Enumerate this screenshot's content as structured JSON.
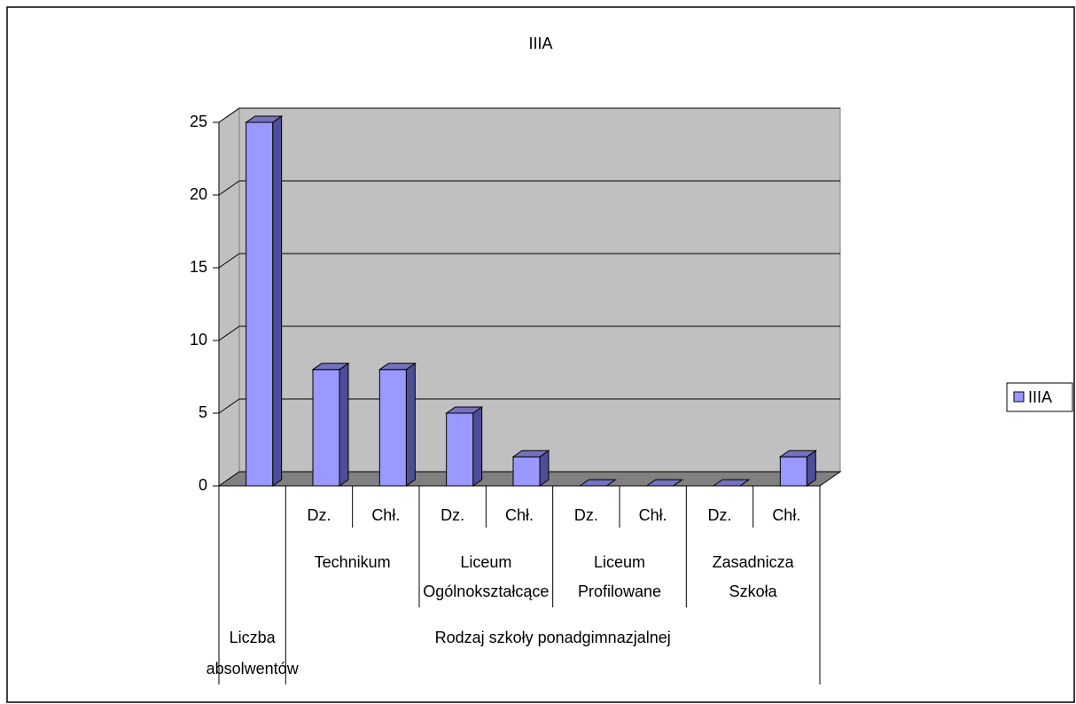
{
  "chart_data": {
    "type": "bar3d",
    "title": "IIIA",
    "series": [
      {
        "name": "IIIA",
        "color": "#9999ff",
        "values": [
          25,
          8,
          8,
          5,
          2,
          0,
          0,
          0,
          2
        ]
      }
    ],
    "groups": [
      {
        "name": "Liczba absolwentów",
        "subgroups": [
          {
            "name": null,
            "categories": [
              null
            ]
          }
        ]
      },
      {
        "name": "Rodzaj szkoły ponadgimnazjalnej",
        "subgroups": [
          {
            "name": "Technikum",
            "categories": [
              "Dz.",
              "Chł."
            ]
          },
          {
            "name": "Liceum Ogólnokształcące",
            "categories": [
              "Dz.",
              "Chł."
            ]
          },
          {
            "name": "Liceum Profilowane",
            "categories": [
              "Dz.",
              "Chł."
            ]
          },
          {
            "name": "Zasadnicza Szkoła",
            "categories": [
              "Dz.",
              "Chł."
            ]
          }
        ]
      }
    ],
    "ylim": [
      0,
      25
    ],
    "yticks": [
      0,
      5,
      10,
      15,
      20,
      25
    ],
    "grid": true,
    "legend": "right"
  }
}
